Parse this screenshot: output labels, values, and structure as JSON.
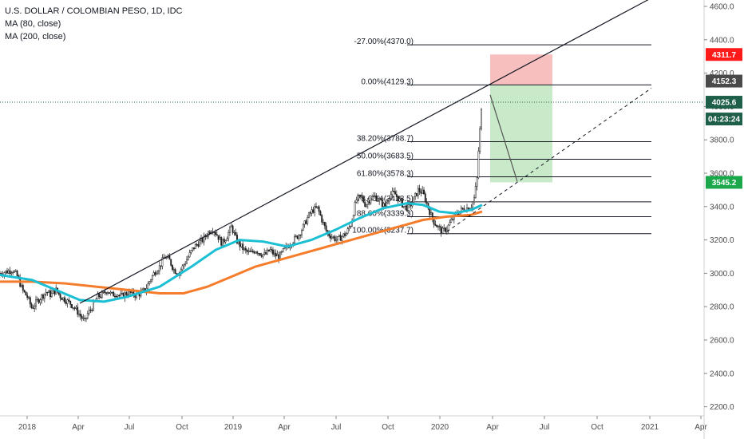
{
  "legend": {
    "title": "U.S. DOLLAR / COLOMBIAN PESO, 1D, IDC",
    "ma1": "MA (80, close)",
    "ma2": "MA (200, close)"
  },
  "price_tags": {
    "target": {
      "label": "4311.7",
      "value": 4311.7,
      "color": "#ff1a1a"
    },
    "high": {
      "label": "4152.3",
      "value": 4152.3,
      "color": "#4a4a4a"
    },
    "last": {
      "label": "4025.6",
      "value": 4025.6,
      "color": "#1e5f4a"
    },
    "countdown": {
      "label": "04:23:24",
      "value": 3925,
      "color": "#1e5f4a"
    },
    "stop": {
      "label": "3545.2",
      "value": 3545.2,
      "color": "#1aa84a"
    }
  },
  "chart_data": {
    "type": "candlestick",
    "x_ticks": [
      {
        "label": "2018",
        "t": 34
      },
      {
        "label": "Apr",
        "t": 98
      },
      {
        "label": "Jul",
        "t": 162
      },
      {
        "label": "Oct",
        "t": 228
      },
      {
        "label": "2019",
        "t": 292
      },
      {
        "label": "Apr",
        "t": 356
      },
      {
        "label": "Jul",
        "t": 421
      },
      {
        "label": "Oct",
        "t": 486
      },
      {
        "label": "2020",
        "t": 551
      },
      {
        "label": "Apr",
        "t": 617
      },
      {
        "label": "Jul",
        "t": 682
      },
      {
        "label": "Oct",
        "t": 748
      },
      {
        "label": "2021",
        "t": 814
      },
      {
        "label": "Apr",
        "t": 878
      }
    ],
    "y_ticks": [
      "4600.0",
      "4400.0",
      "4200.0",
      "4000.0",
      "3800.0",
      "3600.0",
      "3400.0",
      "3200.0",
      "3000.0",
      "2800.0",
      "2600.0",
      "2400.0",
      "2200.0"
    ],
    "y_values": [
      4600,
      4400,
      4200,
      4000,
      3800,
      3600,
      3400,
      3200,
      3000,
      2800,
      2600,
      2400,
      2200
    ],
    "ylim": [
      2180,
      4680
    ],
    "price_path": [
      [
        0,
        3000
      ],
      [
        8,
        3010
      ],
      [
        16,
        3020
      ],
      [
        22,
        2980
      ],
      [
        28,
        2900
      ],
      [
        34,
        2860
      ],
      [
        40,
        2790
      ],
      [
        46,
        2830
      ],
      [
        52,
        2860
      ],
      [
        58,
        2890
      ],
      [
        64,
        2870
      ],
      [
        70,
        2900
      ],
      [
        76,
        2860
      ],
      [
        82,
        2840
      ],
      [
        88,
        2820
      ],
      [
        94,
        2790
      ],
      [
        100,
        2750
      ],
      [
        106,
        2710
      ],
      [
        110,
        2760
      ],
      [
        116,
        2800
      ],
      [
        122,
        2860
      ],
      [
        128,
        2870
      ],
      [
        134,
        2900
      ],
      [
        140,
        2870
      ],
      [
        146,
        2880
      ],
      [
        152,
        2860
      ],
      [
        158,
        2880
      ],
      [
        164,
        2880
      ],
      [
        170,
        2870
      ],
      [
        176,
        2880
      ],
      [
        182,
        2900
      ],
      [
        188,
        2960
      ],
      [
        194,
        3010
      ],
      [
        200,
        3040
      ],
      [
        206,
        3100
      ],
      [
        212,
        3080
      ],
      [
        218,
        3020
      ],
      [
        224,
        3000
      ],
      [
        230,
        3050
      ],
      [
        236,
        3100
      ],
      [
        242,
        3150
      ],
      [
        248,
        3180
      ],
      [
        254,
        3200
      ],
      [
        260,
        3240
      ],
      [
        266,
        3270
      ],
      [
        272,
        3230
      ],
      [
        278,
        3180
      ],
      [
        284,
        3220
      ],
      [
        290,
        3280
      ],
      [
        296,
        3200
      ],
      [
        302,
        3160
      ],
      [
        308,
        3130
      ],
      [
        314,
        3120
      ],
      [
        320,
        3140
      ],
      [
        326,
        3120
      ],
      [
        332,
        3110
      ],
      [
        338,
        3140
      ],
      [
        344,
        3110
      ],
      [
        350,
        3100
      ],
      [
        356,
        3140
      ],
      [
        362,
        3170
      ],
      [
        368,
        3200
      ],
      [
        374,
        3230
      ],
      [
        380,
        3280
      ],
      [
        386,
        3340
      ],
      [
        392,
        3380
      ],
      [
        398,
        3390
      ],
      [
        404,
        3310
      ],
      [
        410,
        3240
      ],
      [
        416,
        3220
      ],
      [
        422,
        3200
      ],
      [
        428,
        3220
      ],
      [
        434,
        3240
      ],
      [
        440,
        3300
      ],
      [
        446,
        3440
      ],
      [
        452,
        3460
      ],
      [
        458,
        3410
      ],
      [
        464,
        3450
      ],
      [
        470,
        3460
      ],
      [
        476,
        3430
      ],
      [
        482,
        3400
      ],
      [
        488,
        3470
      ],
      [
        494,
        3480
      ],
      [
        500,
        3440
      ],
      [
        506,
        3400
      ],
      [
        512,
        3390
      ],
      [
        518,
        3440
      ],
      [
        524,
        3500
      ],
      [
        530,
        3480
      ],
      [
        536,
        3400
      ],
      [
        542,
        3320
      ],
      [
        548,
        3280
      ],
      [
        554,
        3250
      ],
      [
        560,
        3270
      ],
      [
        566,
        3320
      ],
      [
        572,
        3360
      ],
      [
        578,
        3380
      ],
      [
        584,
        3390
      ],
      [
        590,
        3400
      ],
      [
        594,
        3450
      ],
      [
        598,
        3580
      ],
      [
        600,
        3800
      ],
      [
        602,
        3900
      ],
      [
        604,
        4040
      ]
    ],
    "ma80": [
      [
        0,
        2990
      ],
      [
        40,
        2960
      ],
      [
        70,
        2900
      ],
      [
        100,
        2840
      ],
      [
        130,
        2830
      ],
      [
        160,
        2860
      ],
      [
        200,
        2920
      ],
      [
        240,
        3040
      ],
      [
        270,
        3140
      ],
      [
        300,
        3200
      ],
      [
        330,
        3190
      ],
      [
        360,
        3160
      ],
      [
        390,
        3200
      ],
      [
        420,
        3260
      ],
      [
        450,
        3330
      ],
      [
        480,
        3390
      ],
      [
        510,
        3420
      ],
      [
        530,
        3410
      ],
      [
        550,
        3370
      ],
      [
        570,
        3360
      ],
      [
        590,
        3380
      ],
      [
        604,
        3410
      ]
    ],
    "ma200": [
      [
        0,
        2950
      ],
      [
        40,
        2950
      ],
      [
        80,
        2940
      ],
      [
        120,
        2920
      ],
      [
        160,
        2900
      ],
      [
        200,
        2880
      ],
      [
        230,
        2880
      ],
      [
        260,
        2920
      ],
      [
        290,
        2980
      ],
      [
        320,
        3040
      ],
      [
        350,
        3080
      ],
      [
        380,
        3120
      ],
      [
        410,
        3160
      ],
      [
        440,
        3200
      ],
      [
        470,
        3240
      ],
      [
        500,
        3280
      ],
      [
        530,
        3320
      ],
      [
        560,
        3340
      ],
      [
        590,
        3350
      ],
      [
        604,
        3370
      ]
    ],
    "trendline_upper": [
      [
        100,
        2820
      ],
      [
        812,
        4640
      ]
    ],
    "trendline_lower": [
      [
        560,
        3250
      ],
      [
        816,
        4110
      ]
    ],
    "projection": [
      [
        614,
        4070
      ],
      [
        648,
        3550
      ]
    ],
    "fib_levels": [
      {
        "label": "-27.00%(4370.0)",
        "value": 4370.0
      },
      {
        "label": "0.00%(4129.3)",
        "value": 4129.3
      },
      {
        "label": "38.20%(3788.7)",
        "value": 3788.7
      },
      {
        "label": "50.00%(3683.5)",
        "value": 3683.5
      },
      {
        "label": "61.80%(3578.3)",
        "value": 3578.3
      },
      {
        "label": "78.60%(3428.5)",
        "value": 3428.5
      },
      {
        "label": "88.60%(3339.3)",
        "value": 3339.3
      },
      {
        "label": "100.00%(3237.7)",
        "value": 3237.7
      }
    ],
    "fib_x_range": [
      510,
      816
    ],
    "position_box": {
      "x_start": 614,
      "x_end": 692,
      "entry": 4129.3,
      "target": 4311.7,
      "stop": 3545.2
    },
    "last_price": 4025.6
  }
}
